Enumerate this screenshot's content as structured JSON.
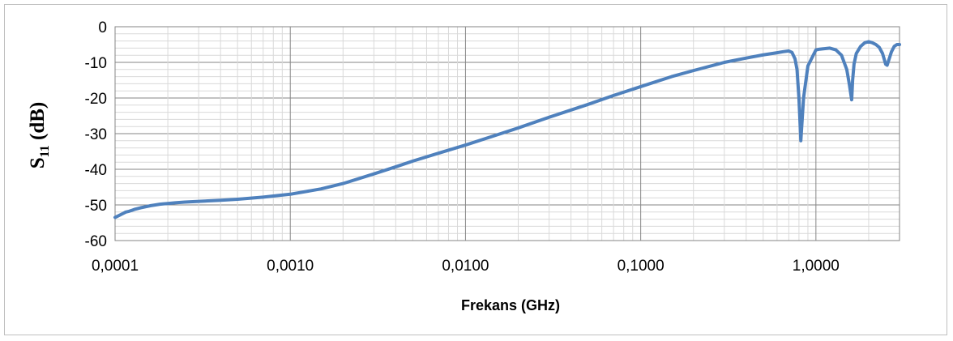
{
  "chart_data": {
    "type": "line",
    "xscale": "log",
    "xlim": [
      0.0001,
      3.0
    ],
    "ylim": [
      -60,
      0
    ],
    "xlabel": "Frekans (GHz)",
    "ylabel_main": "S",
    "ylabel_sub": "11",
    "ylabel_unit": " (dB)",
    "x_tick_labels": [
      "0,0001",
      "0,0010",
      "0,0100",
      "0,1000",
      "1,0000"
    ],
    "x_ticks": [
      0.0001,
      0.001,
      0.01,
      0.1,
      1.0
    ],
    "y_ticks": [
      0,
      -10,
      -20,
      -30,
      -40,
      -50,
      -60
    ],
    "y_tick_labels": [
      "0",
      "-10",
      "-20",
      "-30",
      "-40",
      "-50",
      "-60"
    ],
    "grid": true,
    "line_color": "#4f81bd",
    "series": [
      {
        "x": [
          0.0001,
          0.000105,
          0.00011,
          0.000115,
          0.00012,
          0.000125,
          0.00013,
          0.00014,
          0.00015,
          0.00016,
          0.00017,
          0.00018,
          0.00019,
          0.0002,
          0.00022,
          0.00025,
          0.0003,
          0.0004,
          0.0005,
          0.0007,
          0.001,
          0.0015,
          0.002,
          0.003,
          0.004,
          0.005,
          0.007,
          0.01,
          0.015,
          0.02,
          0.03,
          0.05,
          0.07,
          0.1,
          0.15,
          0.2,
          0.3,
          0.4,
          0.5,
          0.6,
          0.65,
          0.7,
          0.73,
          0.76,
          0.78,
          0.8,
          0.82,
          0.85,
          0.9,
          1.0,
          1.05,
          1.1,
          1.2,
          1.3,
          1.4,
          1.5,
          1.55,
          1.6,
          1.62,
          1.65,
          1.7,
          1.8,
          1.9,
          2.0,
          2.1,
          2.2,
          2.3,
          2.4,
          2.5,
          2.55,
          2.6,
          2.7,
          2.8,
          2.9,
          3.0
        ],
        "y": [
          -53.5,
          -53.0,
          -52.5,
          -52.0,
          -51.8,
          -51.5,
          -51.2,
          -50.8,
          -50.5,
          -50.2,
          -50.0,
          -49.8,
          -49.7,
          -49.6,
          -49.4,
          -49.2,
          -49.0,
          -48.7,
          -48.4,
          -47.8,
          -47.0,
          -45.5,
          -44.0,
          -41.3,
          -39.3,
          -37.7,
          -35.5,
          -33.2,
          -30.4,
          -28.4,
          -25.4,
          -21.8,
          -19.3,
          -16.8,
          -14.0,
          -12.3,
          -10.0,
          -8.8,
          -7.9,
          -7.3,
          -7.0,
          -6.8,
          -7.2,
          -9.0,
          -12.0,
          -20.0,
          -32.0,
          -20.0,
          -11.0,
          -6.5,
          -6.3,
          -6.2,
          -6.0,
          -6.5,
          -8.0,
          -12.0,
          -16.0,
          -20.5,
          -15.0,
          -10.5,
          -7.5,
          -5.5,
          -4.5,
          -4.2,
          -4.5,
          -5.0,
          -5.8,
          -7.5,
          -10.5,
          -10.8,
          -9.5,
          -7.0,
          -5.5,
          -5.0,
          -5.0
        ]
      }
    ]
  }
}
